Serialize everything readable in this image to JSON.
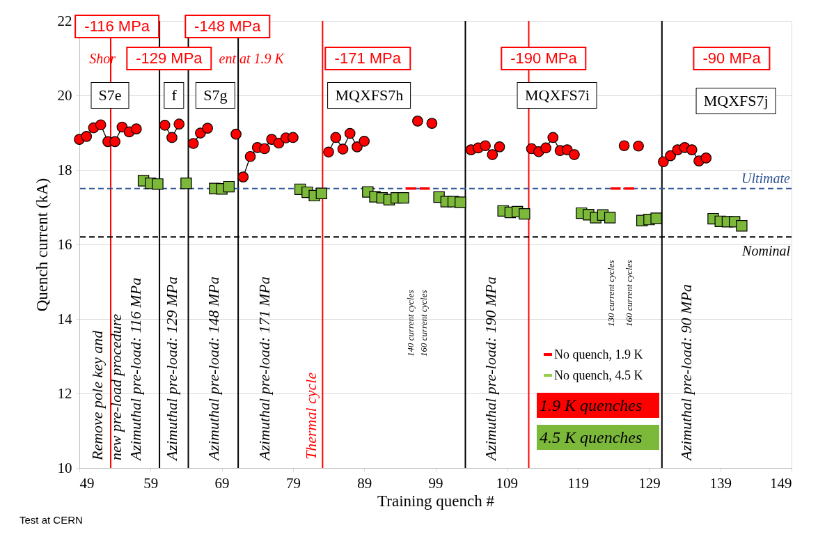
{
  "chart_data": {
    "type": "line",
    "xlabel": "Training quench #",
    "ylabel": "Quench current (kA)",
    "xlim": [
      49,
      149
    ],
    "xticks": [
      49,
      59,
      69,
      79,
      89,
      99,
      109,
      119,
      129,
      139,
      149
    ],
    "ylim": [
      10,
      22
    ],
    "yticks": [
      10,
      12,
      14,
      16,
      18,
      20,
      22
    ],
    "grid": "y",
    "legend": "bottom right",
    "series": [
      {
        "name": "No quench, 1.9 K",
        "marker": "none",
        "color": "#ff0000",
        "x": [
          94.8,
          96.3,
          null,
          96.8,
          98.2,
          null,
          123.6,
          125.0,
          null,
          125.5,
          126.9
        ],
        "values": [
          17.5,
          17.5,
          null,
          17.5,
          17.5,
          null,
          17.5,
          17.5,
          null,
          17.5,
          17.5
        ]
      },
      {
        "name": "No quench, 4.5 K",
        "marker": "none",
        "color": "#92d050"
      },
      {
        "name": "1.9 K quenches",
        "marker": "circle",
        "color": "#ff0000",
        "x": [
          49,
          50,
          51,
          52,
          53,
          54,
          55,
          56,
          57,
          null,
          61,
          62,
          63,
          null,
          65,
          66,
          67,
          null,
          71,
          null,
          72,
          73,
          74,
          75,
          76,
          77,
          78,
          79,
          null,
          84,
          85,
          86,
          87,
          88,
          89,
          null,
          96.5,
          null,
          98.5,
          null,
          104,
          105,
          106,
          107,
          108,
          null,
          112.5,
          113.5,
          114.5,
          115.5,
          116.5,
          117.5,
          118.5,
          null,
          125.5,
          null,
          127.5,
          null,
          131,
          132,
          133,
          134,
          135,
          136,
          137
        ],
        "values": [
          18.82,
          18.9,
          19.13,
          19.21,
          18.76,
          18.76,
          19.15,
          19.02,
          19.1,
          null,
          19.2,
          18.87,
          19.23,
          null,
          18.71,
          18.99,
          19.12,
          null,
          18.96,
          null,
          17.81,
          18.36,
          18.6,
          18.57,
          18.82,
          18.72,
          18.86,
          18.87,
          null,
          18.48,
          18.87,
          18.56,
          18.98,
          18.62,
          18.77,
          null,
          19.31,
          null,
          19.25,
          null,
          18.54,
          18.59,
          18.65,
          18.41,
          18.62,
          null,
          18.57,
          18.49,
          18.59,
          18.87,
          18.52,
          18.54,
          18.41,
          null,
          18.65,
          null,
          18.64,
          null,
          18.22,
          18.38,
          18.54,
          18.6,
          18.54,
          18.24,
          18.32
        ]
      },
      {
        "name": "4.5 K quenches",
        "type": "scatter",
        "marker": "square",
        "color": "#7cb83a",
        "x": [
          58,
          59,
          60,
          64,
          68,
          69,
          70,
          80,
          81,
          82,
          83,
          89.5,
          90.5,
          91.5,
          92.5,
          93.5,
          94.5,
          99.5,
          100.5,
          101.5,
          102.5,
          108.5,
          109.5,
          110.5,
          111.5,
          119.5,
          120.5,
          121.5,
          122.5,
          123.5,
          128,
          129,
          130,
          138,
          139,
          140,
          141,
          142
        ],
        "values": [
          17.71,
          17.64,
          17.62,
          17.64,
          17.5,
          17.49,
          17.55,
          17.48,
          17.4,
          17.31,
          17.37,
          17.41,
          17.28,
          17.25,
          17.2,
          17.25,
          17.25,
          17.27,
          17.15,
          17.15,
          17.13,
          16.9,
          16.86,
          16.88,
          16.82,
          16.84,
          16.8,
          16.72,
          16.79,
          16.72,
          16.64,
          16.67,
          16.7,
          16.69,
          16.62,
          16.61,
          16.61,
          16.5
        ]
      }
    ],
    "ref_lines": [
      {
        "axis": "x",
        "value": 53.4,
        "color": "#ff0000"
      },
      {
        "axis": "x",
        "value": 60.25,
        "color": "#000000"
      },
      {
        "axis": "x",
        "value": 64.3,
        "color": "#000000"
      },
      {
        "axis": "x",
        "value": 71.3,
        "color": "#000000"
      },
      {
        "axis": "x",
        "value": 83.15,
        "color": "#ff0000",
        "label": "Thermal cycle"
      },
      {
        "axis": "x",
        "value": 103.2,
        "color": "#000000"
      },
      {
        "axis": "x",
        "value": 112.1,
        "color": "#ff0000"
      },
      {
        "axis": "x",
        "value": 130.8,
        "color": "#000000"
      },
      {
        "axis": "y",
        "value": 17.5,
        "color": "#2f5597",
        "line_style": "dashed",
        "label": "Ultimate"
      },
      {
        "axis": "y",
        "value": 16.2,
        "color": "#000000",
        "line_style": "dashed",
        "label": "Nominal"
      }
    ],
    "annotations": [
      "-116 MPa",
      "-148 MPa",
      "Shor",
      "ent at 1.9 K",
      "-129 MPa",
      "-171 MPa",
      "-190 MPa",
      "-90 MPa",
      "S7e",
      "f",
      "S7g",
      "MQXFS7h",
      "MQXFS7i",
      "MQXFS7j",
      "Remove pole key and",
      "new pre-load procedure",
      "Azimuthal pre-load: 116 MPa",
      "Azimuthal pre-load: 129 MPa",
      "Azimuthal pre-load: 148 MPa",
      "Azimuthal pre-load: 171 MPa",
      "Azimuthal pre-load: 190 MPa",
      "Azimuthal pre-load: 90 MPa",
      "140 current cycles",
      "160 current cycles",
      "130 current cycles",
      "160 current cycles",
      "Test at CERN"
    ]
  }
}
